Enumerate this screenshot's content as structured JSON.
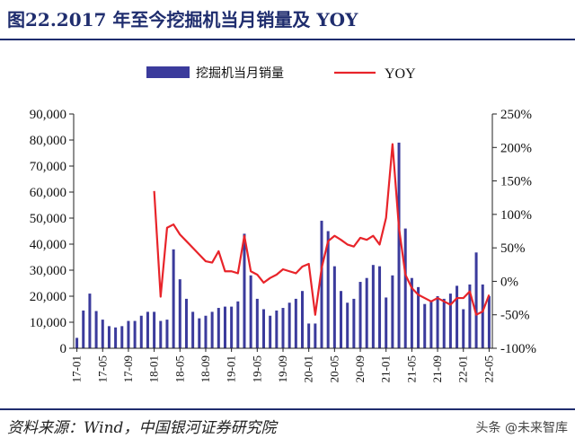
{
  "header": {
    "title": "图22.2017 年至今挖掘机当月销量及 YOY"
  },
  "footer": {
    "source": "资料来源：Wind，中国银河证券研究院",
    "watermark": "头条 @未来智库"
  },
  "colors": {
    "bar": "#3b3b9c",
    "line": "#e8242a",
    "axis": "#222222"
  },
  "chart_data": {
    "type": "bar",
    "title": "",
    "legend_position": "top",
    "grid": false,
    "x_tick_labels": [
      "17-01",
      "17-05",
      "17-09",
      "18-01",
      "18-05",
      "18-09",
      "19-01",
      "19-05",
      "19-09",
      "20-01",
      "20-05",
      "20-09",
      "21-01",
      "21-05",
      "21-09",
      "22-01",
      "22-05"
    ],
    "y_left": {
      "ylim": [
        0,
        90000
      ],
      "ticks": [
        "0",
        "10,000",
        "20,000",
        "30,000",
        "40,000",
        "50,000",
        "60,000",
        "70,000",
        "80,000",
        "90,000"
      ]
    },
    "y_right": {
      "ylim": [
        -100,
        250
      ],
      "ticks": [
        "-100%",
        "-50%",
        "0%",
        "50%",
        "100%",
        "150%",
        "200%",
        "250%"
      ]
    },
    "categories": [
      "17-01",
      "17-02",
      "17-03",
      "17-04",
      "17-05",
      "17-06",
      "17-07",
      "17-08",
      "17-09",
      "17-10",
      "17-11",
      "17-12",
      "18-01",
      "18-02",
      "18-03",
      "18-04",
      "18-05",
      "18-06",
      "18-07",
      "18-08",
      "18-09",
      "18-10",
      "18-11",
      "18-12",
      "19-01",
      "19-02",
      "19-03",
      "19-04",
      "19-05",
      "19-06",
      "19-07",
      "19-08",
      "19-09",
      "19-10",
      "19-11",
      "19-12",
      "20-01",
      "20-02",
      "20-03",
      "20-04",
      "20-05",
      "20-06",
      "20-07",
      "20-08",
      "20-09",
      "20-10",
      "20-11",
      "20-12",
      "21-01",
      "21-02",
      "21-03",
      "21-04",
      "21-05",
      "21-06",
      "21-07",
      "21-08",
      "21-09",
      "21-10",
      "21-11",
      "21-12",
      "22-01",
      "22-02",
      "22-03",
      "22-04",
      "22-05"
    ],
    "series": [
      {
        "name": "挖掘机当月销量",
        "axis": "left",
        "kind": "bar",
        "values": [
          4000,
          14500,
          21000,
          14300,
          11000,
          8500,
          8000,
          8500,
          10500,
          10500,
          12500,
          14000,
          14000,
          10500,
          11000,
          38000,
          26500,
          19000,
          14000,
          11500,
          12500,
          14000,
          15500,
          16000,
          16000,
          18000,
          44000,
          28000,
          19000,
          15000,
          12500,
          14500,
          15500,
          17500,
          19000,
          22000,
          9500,
          9500,
          49000,
          45000,
          31500,
          22000,
          17500,
          19000,
          25500,
          27000,
          32000,
          31500,
          19500,
          28000,
          79000,
          46000,
          27000,
          23500,
          17000,
          18000,
          20000,
          19000,
          21000,
          24000,
          15000,
          24500,
          36800,
          24500,
          20000
        ]
      },
      {
        "name": "YOY",
        "axis": "right",
        "kind": "line",
        "values": [
          null,
          null,
          null,
          null,
          null,
          null,
          null,
          null,
          null,
          null,
          null,
          null,
          135,
          -23,
          80,
          85,
          70,
          60,
          50,
          40,
          30,
          28,
          45,
          15,
          15,
          12,
          68,
          15,
          10,
          -2,
          5,
          10,
          18,
          15,
          12,
          22,
          26,
          -50,
          20,
          60,
          68,
          62,
          55,
          52,
          65,
          62,
          68,
          55,
          95,
          205,
          80,
          10,
          -10,
          -20,
          -25,
          -30,
          -25,
          -30,
          -35,
          -25,
          -25,
          -15,
          -50,
          -45,
          -20
        ]
      }
    ]
  }
}
